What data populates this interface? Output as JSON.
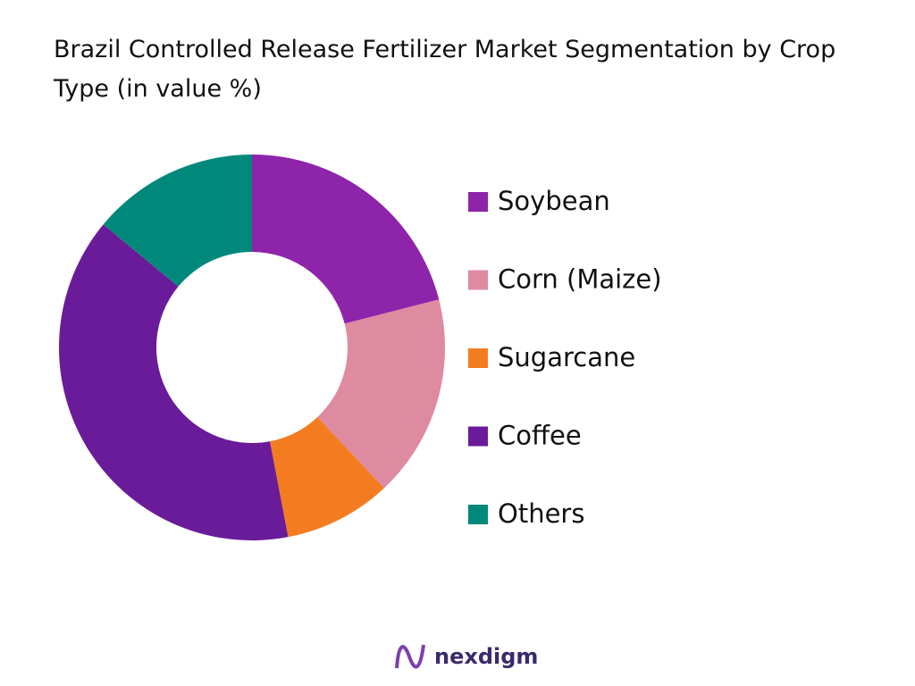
{
  "chart_data": {
    "type": "donut",
    "title": "Brazil Controlled Release Fertilizer Market Segmentation by Crop Type (in value %)",
    "categories": [
      "Soybean",
      "Corn (Maize)",
      "Sugarcane",
      "Coffee",
      "Others"
    ],
    "values": [
      21,
      17,
      9,
      39,
      14
    ],
    "colors": [
      "#8e24aa",
      "#de8aa0",
      "#f47c20",
      "#6a1b9a",
      "#00897b"
    ],
    "legend": "right"
  },
  "footer": {
    "logo": "nexdigm"
  }
}
